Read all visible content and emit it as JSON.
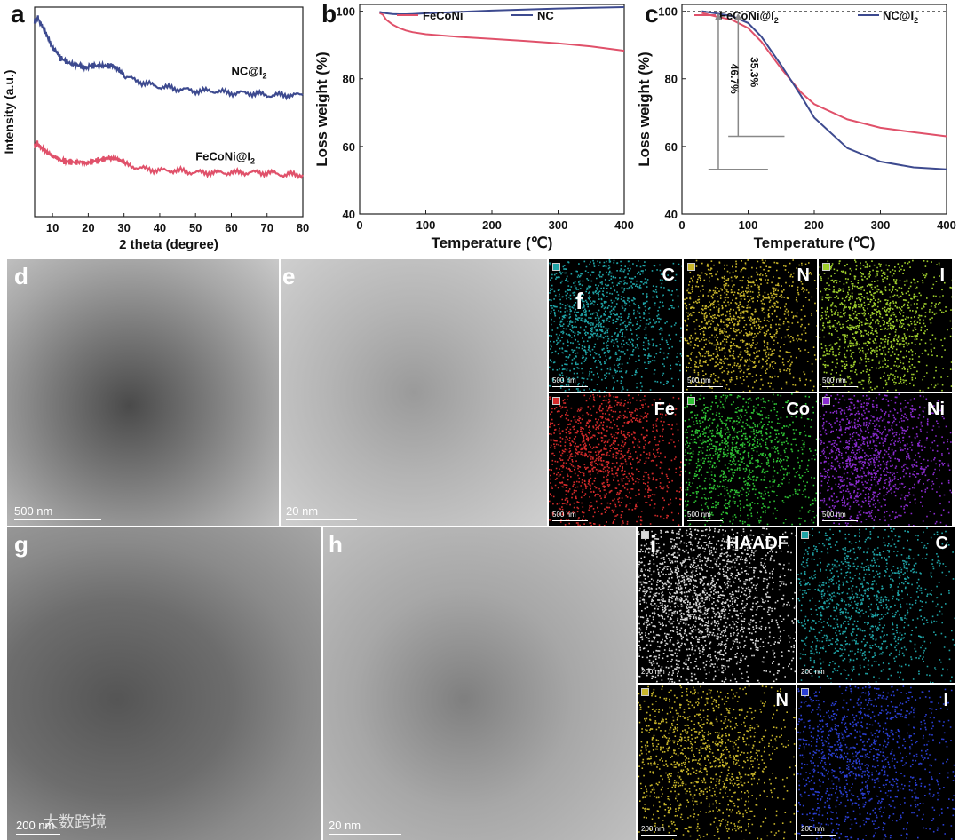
{
  "chart_data": [
    {
      "panel": "a",
      "type": "line",
      "xlabel": "2 theta (degree)",
      "ylabel": "Intensity (a.u.)",
      "xlim": [
        5,
        80
      ],
      "xticks": [
        10,
        20,
        30,
        40,
        50,
        60,
        70,
        80
      ],
      "yticks": [],
      "series": [
        {
          "name": "NC@I2",
          "color": "#3d4a8f",
          "x": [
            5,
            6,
            8,
            10,
            12,
            15,
            18,
            20,
            23,
            26,
            28,
            30,
            35,
            40,
            45,
            50,
            55,
            60,
            65,
            70,
            75,
            80
          ],
          "y": [
            0.93,
            0.95,
            0.88,
            0.8,
            0.76,
            0.73,
            0.72,
            0.72,
            0.72,
            0.72,
            0.7,
            0.67,
            0.64,
            0.62,
            0.61,
            0.6,
            0.6,
            0.59,
            0.59,
            0.58,
            0.58,
            0.58
          ]
        },
        {
          "name": "FeCoNi@I2",
          "color": "#e0516a",
          "x": [
            5,
            6,
            8,
            10,
            12,
            15,
            18,
            20,
            23,
            26,
            28,
            30,
            35,
            40,
            45,
            50,
            55,
            60,
            65,
            70,
            75,
            80
          ],
          "y": [
            0.34,
            0.35,
            0.32,
            0.29,
            0.27,
            0.26,
            0.26,
            0.26,
            0.27,
            0.28,
            0.27,
            0.25,
            0.23,
            0.22,
            0.22,
            0.21,
            0.21,
            0.21,
            0.21,
            0.21,
            0.2,
            0.2
          ]
        }
      ],
      "legend_labels": {
        "nc": "NC@I",
        "fe": "FeCoNi@I",
        "sub": "2"
      }
    },
    {
      "panel": "b",
      "type": "line",
      "xlabel": "Temperature (℃)",
      "ylabel": "Loss weight (%)",
      "xlim": [
        0,
        400
      ],
      "ylim": [
        40,
        102
      ],
      "xticks": [
        0,
        100,
        200,
        300,
        400
      ],
      "yticks": [
        40,
        60,
        80,
        100
      ],
      "series": [
        {
          "name": "FeCoNi",
          "color": "#e0516a",
          "x": [
            30,
            35,
            40,
            50,
            60,
            70,
            80,
            100,
            150,
            200,
            250,
            300,
            350,
            400
          ],
          "y": [
            99.5,
            99.0,
            97.5,
            96.0,
            95.0,
            94.3,
            93.8,
            93.2,
            92.4,
            91.8,
            91.2,
            90.5,
            89.6,
            88.3
          ]
        },
        {
          "name": "NC",
          "color": "#3d4a8f",
          "x": [
            30,
            35,
            40,
            50,
            60,
            70,
            80,
            100,
            150,
            200,
            250,
            300,
            350,
            400
          ],
          "y": [
            99.8,
            99.6,
            99.4,
            99.2,
            99.1,
            99.1,
            99.2,
            99.4,
            99.8,
            100.2,
            100.5,
            100.8,
            101.0,
            101.2
          ]
        }
      ]
    },
    {
      "panel": "c",
      "type": "line",
      "xlabel": "Temperature (℃)",
      "ylabel": "Loss weight (%)",
      "xlim": [
        0,
        400
      ],
      "ylim": [
        40,
        102
      ],
      "xticks": [
        0,
        100,
        200,
        300,
        400
      ],
      "yticks": [
        40,
        60,
        80,
        100
      ],
      "reference_line": 100,
      "series": [
        {
          "name": "FeCoNi@I2",
          "color": "#e0516a",
          "x": [
            30,
            50,
            75,
            100,
            120,
            150,
            180,
            200,
            250,
            300,
            350,
            400
          ],
          "y": [
            99.5,
            98.5,
            97.5,
            95.0,
            91.0,
            83.0,
            76.0,
            72.5,
            68.0,
            65.5,
            64.2,
            63.0
          ]
        },
        {
          "name": "NC@I2",
          "color": "#3d4a8f",
          "x": [
            30,
            50,
            75,
            100,
            120,
            150,
            180,
            200,
            250,
            300,
            350,
            400
          ],
          "y": [
            100.0,
            99.4,
            98.6,
            96.5,
            92.5,
            84.0,
            75.0,
            68.5,
            59.5,
            55.5,
            53.8,
            53.2
          ]
        }
      ],
      "annotations": {
        "a1": "46.7%",
        "a2": "35.3%"
      },
      "legend_labels": {
        "fe": "FeCoNi@I",
        "nc": "NC@I",
        "sub": "2"
      }
    }
  ],
  "panels": {
    "a": "a",
    "b": "b",
    "c": "c",
    "d": "d",
    "e": "e",
    "f": "f",
    "g": "g",
    "h": "h",
    "i": "i"
  },
  "micrographs": {
    "d_scale": "500 nm",
    "e_scale": "20 nm",
    "g_scale": "200 nm",
    "h_scale": "20 nm"
  },
  "mapping_f": {
    "scale": "500 nm",
    "elements": [
      {
        "label": "C",
        "color": "#1fa3a6"
      },
      {
        "label": "N",
        "color": "#c9b62a"
      },
      {
        "label": "I",
        "color": "#9fcf2c"
      },
      {
        "label": "Fe",
        "color": "#d42a2a"
      },
      {
        "label": "Co",
        "color": "#2ec234"
      },
      {
        "label": "Ni",
        "color": "#8a2bd0"
      }
    ]
  },
  "mapping_i": {
    "scale": "200 nm",
    "elements": [
      {
        "label": "HAADF",
        "color": "#d8d8d8"
      },
      {
        "label": "C",
        "color": "#1fa3a6"
      },
      {
        "label": "N",
        "color": "#c9b62a"
      },
      {
        "label": "I",
        "color": "#2b3fd4"
      }
    ]
  },
  "watermark": "大数跨境"
}
